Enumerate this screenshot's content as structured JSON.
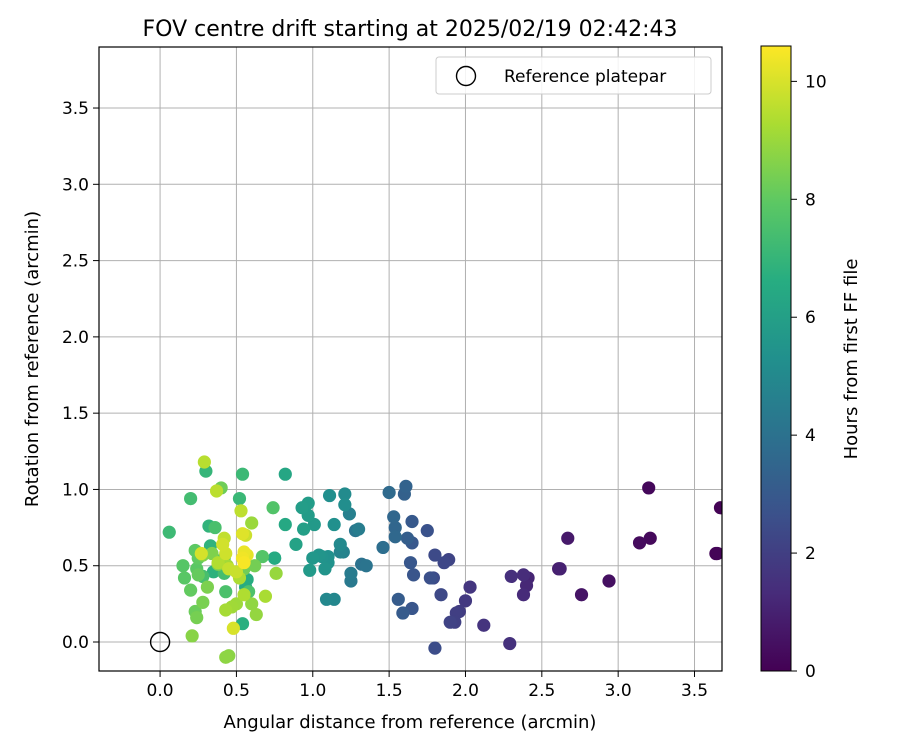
{
  "chart_data": {
    "type": "scatter",
    "title": "FOV centre drift starting at 2025/02/19 02:42:43",
    "xlabel": "Angular distance from reference (arcmin)",
    "ylabel": "Rotation from reference (arcmin)",
    "xlim": [
      -0.4,
      3.68
    ],
    "ylim": [
      -0.19,
      3.9
    ],
    "xticks": [
      "0.0",
      "0.5",
      "1.0",
      "1.5",
      "2.0",
      "2.5",
      "3.0",
      "3.5"
    ],
    "yticks": [
      "0.0",
      "0.5",
      "1.0",
      "1.5",
      "2.0",
      "2.5",
      "3.0",
      "3.5"
    ],
    "grid": true,
    "legend": {
      "placement": "top-right",
      "entries": [
        "Reference platepar"
      ]
    },
    "colorbar": {
      "label": "Hours from first FF file",
      "colormap": "viridis",
      "range": [
        0,
        10.6
      ],
      "ticks": [
        "0",
        "2",
        "4",
        "6",
        "8",
        "10"
      ]
    },
    "reference_point": {
      "x": 0.0,
      "y": 0.0
    },
    "series": [
      {
        "colored_by": "Hours from first FF file",
        "points": [
          [
            3.67,
            0.88,
            0.05
          ],
          [
            3.64,
            0.58,
            0.1
          ],
          [
            3.65,
            0.58,
            0.12
          ],
          [
            3.2,
            1.01,
            0.2
          ],
          [
            3.21,
            0.68,
            0.25
          ],
          [
            3.14,
            0.65,
            0.3
          ],
          [
            2.94,
            0.4,
            0.45
          ],
          [
            2.76,
            0.31,
            0.6
          ],
          [
            2.67,
            0.68,
            0.75
          ],
          [
            2.61,
            0.48,
            0.9
          ],
          [
            2.62,
            0.48,
            1.0
          ],
          [
            2.41,
            0.42,
            1.1
          ],
          [
            2.4,
            0.37,
            1.2
          ],
          [
            2.38,
            0.31,
            1.3
          ],
          [
            2.38,
            0.44,
            1.35
          ],
          [
            2.3,
            0.43,
            1.45
          ],
          [
            2.29,
            -0.01,
            1.5
          ],
          [
            2.12,
            0.11,
            1.6
          ],
          [
            2.03,
            0.36,
            1.7
          ],
          [
            2.0,
            0.27,
            1.8
          ],
          [
            1.96,
            0.2,
            1.9
          ],
          [
            1.94,
            0.19,
            2.0
          ],
          [
            1.93,
            0.13,
            2.05
          ],
          [
            1.9,
            0.13,
            2.15
          ],
          [
            1.89,
            0.54,
            2.2
          ],
          [
            1.86,
            0.52,
            2.3
          ],
          [
            1.84,
            0.31,
            2.35
          ],
          [
            1.8,
            0.57,
            2.4
          ],
          [
            1.79,
            0.42,
            2.45
          ],
          [
            1.8,
            -0.04,
            2.5
          ],
          [
            1.77,
            0.42,
            2.6
          ],
          [
            1.75,
            0.73,
            2.7
          ],
          [
            1.66,
            0.44,
            2.8
          ],
          [
            1.65,
            0.22,
            2.85
          ],
          [
            1.64,
            0.52,
            2.9
          ],
          [
            1.65,
            0.65,
            2.95
          ],
          [
            1.65,
            0.79,
            3.0
          ],
          [
            1.59,
            0.19,
            3.05
          ],
          [
            1.56,
            0.28,
            3.1
          ],
          [
            1.62,
            0.68,
            3.2
          ],
          [
            1.6,
            0.97,
            3.3
          ],
          [
            1.61,
            1.02,
            3.4
          ],
          [
            1.54,
            0.75,
            3.5
          ],
          [
            1.53,
            0.82,
            3.55
          ],
          [
            1.54,
            0.69,
            3.6
          ],
          [
            1.5,
            0.98,
            3.7
          ],
          [
            1.46,
            0.62,
            3.85
          ],
          [
            1.32,
            0.51,
            4.0
          ],
          [
            1.35,
            0.5,
            4.1
          ],
          [
            1.28,
            0.73,
            4.2
          ],
          [
            1.25,
            0.4,
            4.3
          ],
          [
            1.25,
            0.45,
            4.4
          ],
          [
            1.3,
            0.74,
            4.5
          ],
          [
            1.24,
            0.84,
            4.6
          ],
          [
            1.2,
            0.59,
            4.65
          ],
          [
            1.18,
            0.59,
            4.8
          ],
          [
            1.14,
            0.28,
            4.9
          ],
          [
            1.09,
            0.28,
            4.95
          ],
          [
            1.18,
            0.64,
            5.0
          ],
          [
            1.21,
            0.97,
            5.1
          ],
          [
            1.21,
            0.9,
            5.2
          ],
          [
            1.11,
            0.96,
            5.25
          ],
          [
            1.14,
            0.77,
            5.3
          ],
          [
            1.1,
            0.56,
            5.35
          ],
          [
            1.1,
            0.52,
            5.4
          ],
          [
            1.06,
            0.56,
            5.45
          ],
          [
            1.08,
            0.48,
            5.5
          ],
          [
            1.04,
            0.57,
            5.55
          ],
          [
            1.0,
            0.55,
            5.6
          ],
          [
            1.01,
            0.77,
            5.7
          ],
          [
            0.98,
            0.47,
            5.75
          ],
          [
            0.97,
            0.83,
            5.8
          ],
          [
            0.97,
            0.91,
            5.85
          ],
          [
            0.93,
            0.88,
            5.9
          ],
          [
            0.94,
            0.74,
            6.0
          ],
          [
            0.89,
            0.64,
            6.1
          ],
          [
            0.75,
            0.55,
            6.2
          ],
          [
            0.82,
            1.1,
            6.3
          ],
          [
            0.82,
            0.77,
            6.4
          ],
          [
            0.75,
            0.55,
            6.5
          ],
          [
            0.56,
            0.36,
            6.55
          ],
          [
            0.57,
            0.41,
            6.6
          ],
          [
            0.54,
            0.12,
            6.7
          ],
          [
            0.35,
            0.46,
            6.8
          ],
          [
            0.33,
            0.63,
            6.85
          ],
          [
            0.32,
            0.76,
            6.9
          ],
          [
            0.3,
            1.12,
            7.0
          ],
          [
            0.52,
            0.94,
            7.1
          ],
          [
            0.54,
            1.1,
            7.15
          ],
          [
            0.06,
            0.72,
            7.2
          ],
          [
            0.2,
            0.94,
            7.35
          ],
          [
            0.42,
            0.45,
            7.4
          ],
          [
            0.28,
            0.43,
            7.45
          ],
          [
            0.36,
            0.75,
            7.5
          ],
          [
            0.43,
            0.33,
            7.55
          ],
          [
            0.58,
            0.33,
            7.6
          ],
          [
            0.42,
            0.55,
            7.65
          ],
          [
            0.74,
            0.88,
            7.7
          ],
          [
            0.67,
            0.56,
            7.75
          ],
          [
            0.15,
            0.5,
            7.8
          ],
          [
            0.16,
            0.42,
            7.85
          ],
          [
            0.24,
            0.48,
            7.9
          ],
          [
            0.23,
            0.6,
            7.95
          ],
          [
            0.25,
            0.55,
            8.0
          ],
          [
            0.2,
            0.34,
            8.05
          ],
          [
            0.25,
            0.44,
            8.1
          ],
          [
            0.23,
            0.2,
            8.2
          ],
          [
            0.4,
            1.01,
            8.25
          ],
          [
            0.55,
            0.48,
            8.3
          ],
          [
            0.62,
            0.5,
            8.35
          ],
          [
            0.24,
            0.16,
            8.4
          ],
          [
            0.28,
            0.26,
            8.45
          ],
          [
            0.31,
            0.36,
            8.5
          ],
          [
            0.34,
            0.58,
            8.55
          ],
          [
            0.28,
            0.57,
            8.6
          ],
          [
            0.38,
            0.51,
            8.65
          ],
          [
            0.21,
            0.04,
            8.7
          ],
          [
            0.45,
            -0.09,
            8.75
          ],
          [
            0.43,
            -0.1,
            8.8
          ],
          [
            0.6,
            0.25,
            8.85
          ],
          [
            0.63,
            0.18,
            8.9
          ],
          [
            0.76,
            0.45,
            8.95
          ],
          [
            0.6,
            0.78,
            9.0
          ],
          [
            0.5,
            0.25,
            9.05
          ],
          [
            0.47,
            0.23,
            9.1
          ],
          [
            0.44,
            0.5,
            9.15
          ],
          [
            0.43,
            0.21,
            9.2
          ],
          [
            0.69,
            0.3,
            9.25
          ],
          [
            0.52,
            0.42,
            9.3
          ],
          [
            0.55,
            0.31,
            9.35
          ],
          [
            0.38,
            0.52,
            9.4
          ],
          [
            0.29,
            1.18,
            9.5
          ],
          [
            0.37,
            0.99,
            9.55
          ],
          [
            0.53,
            0.86,
            9.6
          ],
          [
            0.42,
            0.68,
            9.65
          ],
          [
            0.45,
            0.48,
            9.7
          ],
          [
            0.5,
            0.46,
            9.75
          ],
          [
            0.56,
            0.7,
            9.8
          ],
          [
            0.43,
            0.58,
            9.85
          ],
          [
            0.41,
            0.64,
            9.9
          ],
          [
            0.27,
            0.58,
            9.95
          ],
          [
            0.48,
            0.09,
            10.0
          ],
          [
            0.54,
            0.71,
            10.1
          ],
          [
            0.57,
            0.57,
            10.2
          ],
          [
            0.55,
            0.59,
            10.3
          ],
          [
            0.54,
            0.55,
            10.4
          ],
          [
            0.55,
            0.52,
            10.5
          ]
        ]
      }
    ]
  }
}
